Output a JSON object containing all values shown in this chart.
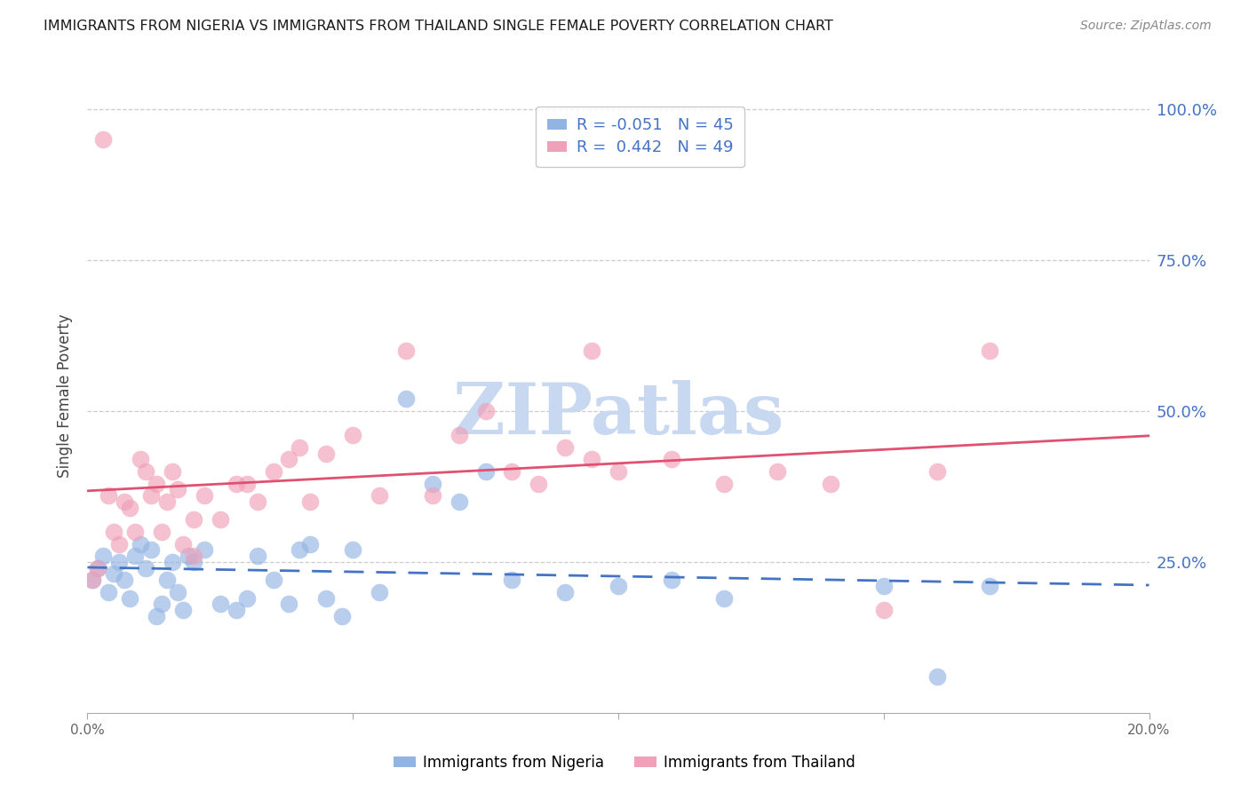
{
  "title": "IMMIGRANTS FROM NIGERIA VS IMMIGRANTS FROM THAILAND SINGLE FEMALE POVERTY CORRELATION CHART",
  "source": "Source: ZipAtlas.com",
  "ylabel": "Single Female Poverty",
  "xlim": [
    0.0,
    0.2
  ],
  "ylim": [
    0.0,
    1.05
  ],
  "ytick_positions": [
    0.25,
    0.5,
    0.75,
    1.0
  ],
  "ytick_labels": [
    "25.0%",
    "50.0%",
    "75.0%",
    "100.0%"
  ],
  "nigeria_R": -0.051,
  "nigeria_N": 45,
  "thailand_R": 0.442,
  "thailand_N": 49,
  "nigeria_color": "#92b4e3",
  "thailand_color": "#f0a0b8",
  "nigeria_line_color": "#4472c4",
  "thailand_line_color": "#e05070",
  "watermark": "ZIPatlas",
  "watermark_color": "#c8d8f0",
  "nigeria_x": [
    0.001,
    0.002,
    0.003,
    0.004,
    0.005,
    0.006,
    0.007,
    0.008,
    0.009,
    0.01,
    0.011,
    0.012,
    0.013,
    0.014,
    0.015,
    0.016,
    0.017,
    0.018,
    0.019,
    0.02,
    0.022,
    0.025,
    0.028,
    0.03,
    0.032,
    0.035,
    0.038,
    0.04,
    0.042,
    0.045,
    0.048,
    0.05,
    0.055,
    0.06,
    0.065,
    0.07,
    0.075,
    0.08,
    0.09,
    0.1,
    0.11,
    0.12,
    0.15,
    0.16,
    0.17
  ],
  "nigeria_y": [
    0.22,
    0.24,
    0.26,
    0.2,
    0.23,
    0.25,
    0.22,
    0.19,
    0.26,
    0.28,
    0.24,
    0.27,
    0.16,
    0.18,
    0.22,
    0.25,
    0.2,
    0.17,
    0.26,
    0.25,
    0.27,
    0.18,
    0.17,
    0.19,
    0.26,
    0.22,
    0.18,
    0.27,
    0.28,
    0.19,
    0.16,
    0.27,
    0.2,
    0.52,
    0.38,
    0.35,
    0.4,
    0.22,
    0.2,
    0.21,
    0.22,
    0.19,
    0.21,
    0.06,
    0.21
  ],
  "thailand_x": [
    0.001,
    0.002,
    0.003,
    0.004,
    0.005,
    0.006,
    0.007,
    0.008,
    0.009,
    0.01,
    0.011,
    0.012,
    0.013,
    0.014,
    0.015,
    0.016,
    0.017,
    0.018,
    0.02,
    0.022,
    0.025,
    0.028,
    0.03,
    0.032,
    0.035,
    0.038,
    0.04,
    0.042,
    0.045,
    0.05,
    0.055,
    0.06,
    0.065,
    0.07,
    0.075,
    0.08,
    0.085,
    0.09,
    0.095,
    0.1,
    0.11,
    0.12,
    0.13,
    0.14,
    0.15,
    0.16,
    0.17,
    0.02,
    0.095
  ],
  "thailand_y": [
    0.22,
    0.24,
    0.95,
    0.36,
    0.3,
    0.28,
    0.35,
    0.34,
    0.3,
    0.42,
    0.4,
    0.36,
    0.38,
    0.3,
    0.35,
    0.4,
    0.37,
    0.28,
    0.32,
    0.36,
    0.32,
    0.38,
    0.38,
    0.35,
    0.4,
    0.42,
    0.44,
    0.35,
    0.43,
    0.46,
    0.36,
    0.6,
    0.36,
    0.46,
    0.5,
    0.4,
    0.38,
    0.44,
    0.42,
    0.4,
    0.42,
    0.38,
    0.4,
    0.38,
    0.17,
    0.4,
    0.6,
    0.26,
    0.6
  ]
}
